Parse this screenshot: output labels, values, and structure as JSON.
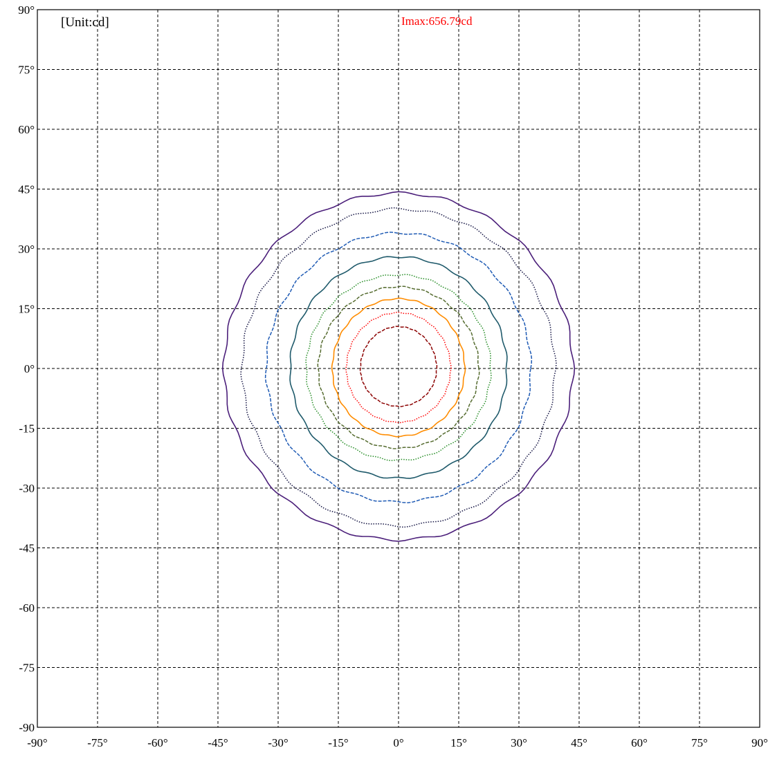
{
  "chart_data": {
    "type": "contour",
    "unit_label": "[Unit:cd]",
    "imax_label": "Imax:656.79cd",
    "xlim": [
      -90,
      90
    ],
    "ylim": [
      -90,
      90
    ],
    "x_ticks": [
      -90,
      -75,
      -60,
      -45,
      -30,
      -15,
      0,
      15,
      30,
      45,
      60,
      75,
      90
    ],
    "y_ticks": [
      90,
      75,
      60,
      45,
      30,
      15,
      0,
      -15,
      -30,
      -45,
      -60,
      -75,
      -90
    ],
    "x_tick_labels": [
      "-90°",
      "-75°",
      "-60°",
      "-45°",
      "-30°",
      "-15°",
      "0°",
      "15°",
      "30°",
      "45°",
      "60°",
      "75°",
      "90°"
    ],
    "y_tick_labels": [
      "90°",
      "75°",
      "60°",
      "45°",
      "30°",
      "15°",
      "0°",
      "-15",
      "-30",
      "-45",
      "-60",
      "-75",
      "-90"
    ],
    "grid": true,
    "contours": [
      {
        "color": "#8b0000",
        "style": "dashed",
        "rx": 9.5,
        "ry_top": 10.5,
        "ry_bottom": 9.5
      },
      {
        "color": "#ff0000",
        "style": "dotted",
        "rx": 13.0,
        "ry_top": 14.0,
        "ry_bottom": 13.5
      },
      {
        "color": "#ff8c00",
        "style": "solid",
        "rx": 16.5,
        "ry_top": 17.5,
        "ry_bottom": 17.0
      },
      {
        "color": "#556b2f",
        "style": "dashed",
        "rx": 20.0,
        "ry_top": 20.5,
        "ry_bottom": 20.0
      },
      {
        "color": "#228b22",
        "style": "dotted",
        "rx": 23.0,
        "ry_top": 23.5,
        "ry_bottom": 23.0
      },
      {
        "color": "#1f5a6b",
        "style": "solid",
        "rx": 27.0,
        "ry_top": 28.0,
        "ry_bottom": 27.5
      },
      {
        "color": "#1e5ab4",
        "style": "dashed",
        "rx": 33.0,
        "ry_top": 34.0,
        "ry_bottom": 33.5
      },
      {
        "color": "#101040",
        "style": "dotted",
        "rx": 39.0,
        "ry_top": 40.0,
        "ry_bottom": 39.5
      },
      {
        "color": "#4b1f7a",
        "style": "solid",
        "rx": 43.5,
        "ry_top": 44.0,
        "ry_bottom": 43.0
      }
    ]
  }
}
